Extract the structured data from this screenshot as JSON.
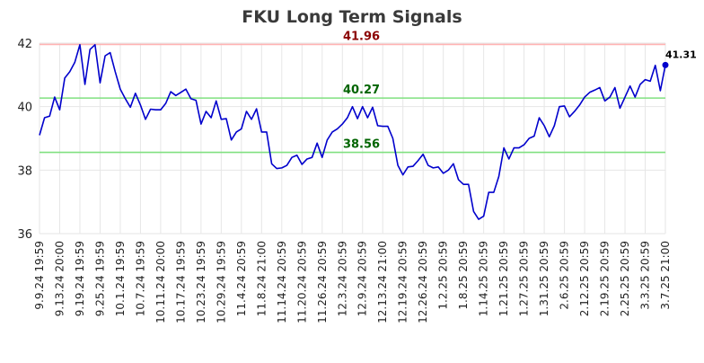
{
  "chart_data": {
    "type": "line",
    "title": "FKU Long Term Signals",
    "xlabel": "",
    "ylabel": "",
    "ylim": [
      36,
      42
    ],
    "yticks": [
      36,
      38,
      40,
      42
    ],
    "grid": true,
    "x_tick_labels": [
      "9.9.24 19:59",
      "9.13.24 20:00",
      "9.19.24 19:59",
      "9.25.24 19:59",
      "10.1.24 19:59",
      "10.7.24 19:59",
      "10.11.24 20:00",
      "10.17.24 19:59",
      "10.23.24 19:59",
      "10.29.24 19:59",
      "11.4.24 20:59",
      "11.8.24 21:00",
      "11.14.24 20:59",
      "11.20.24 20:59",
      "11.26.24 20:59",
      "12.3.24 20:59",
      "12.9.24 20:59",
      "12.13.24 21:00",
      "12.19.24 20:59",
      "12.26.24 20:59",
      "1.2.25 20:59",
      "1.8.25 20:59",
      "1.14.25 20:59",
      "1.21.25 20:59",
      "1.27.25 20:59",
      "1.31.25 20:59",
      "2.6.25 20:59",
      "2.12.25 20:59",
      "2.19.25 20:59",
      "2.25.25 20:59",
      "3.3.25 20:59",
      "3.7.25 21:00"
    ],
    "x_tick_indices": [
      0,
      4,
      8,
      12,
      16,
      20,
      24,
      28,
      32,
      36,
      40,
      44,
      48,
      52,
      56,
      60,
      64,
      68,
      72,
      76,
      80,
      84,
      88,
      92,
      96,
      100,
      104,
      108,
      112,
      116,
      120,
      124
    ],
    "series": [
      {
        "color": "#0000cc",
        "values": [
          39.1,
          39.65,
          39.7,
          40.3,
          39.9,
          40.9,
          41.1,
          41.4,
          41.95,
          40.7,
          41.8,
          41.95,
          40.75,
          41.6,
          41.7,
          41.1,
          40.55,
          40.25,
          39.98,
          40.42,
          40.05,
          39.6,
          39.92,
          39.9,
          39.9,
          40.1,
          40.47,
          40.35,
          40.45,
          40.55,
          40.25,
          40.2,
          39.45,
          39.85,
          39.65,
          40.18,
          39.6,
          39.62,
          38.95,
          39.2,
          39.3,
          39.85,
          39.6,
          39.93,
          39.2,
          39.2,
          38.2,
          38.05,
          38.07,
          38.15,
          38.4,
          38.47,
          38.18,
          38.35,
          38.4,
          38.85,
          38.4,
          38.95,
          39.2,
          39.3,
          39.45,
          39.65,
          40.0,
          39.62,
          40.0,
          39.65,
          39.98,
          39.4,
          39.38,
          39.38,
          39.0,
          38.15,
          37.85,
          38.1,
          38.12,
          38.3,
          38.5,
          38.15,
          38.07,
          38.1,
          37.9,
          38.0,
          38.2,
          37.7,
          37.55,
          37.55,
          36.7,
          36.45,
          36.55,
          37.3,
          37.3,
          37.8,
          38.7,
          38.35,
          38.7,
          38.7,
          38.8,
          39.0,
          39.07,
          39.65,
          39.4,
          39.05,
          39.4,
          40.0,
          40.02,
          39.68,
          39.85,
          40.05,
          40.3,
          40.45,
          40.52,
          40.6,
          40.18,
          40.3,
          40.6,
          39.95,
          40.3,
          40.65,
          40.3,
          40.7,
          40.85,
          40.8,
          41.3,
          40.5,
          41.31
        ]
      }
    ],
    "reference_lines": [
      {
        "value": 41.96,
        "label": "41.96",
        "line_color": "#ffb3b3",
        "label_color": "#8b0000"
      },
      {
        "value": 40.27,
        "label": "40.27",
        "line_color": "#80e080",
        "label_color": "#006400"
      },
      {
        "value": 38.56,
        "label": "38.56",
        "line_color": "#80e080",
        "label_color": "#006400"
      }
    ],
    "last_point_label": "41.31"
  }
}
